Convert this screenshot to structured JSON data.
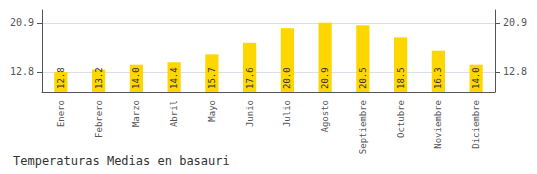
{
  "chart_data": {
    "type": "bar",
    "title": "Temperaturas Medias en basauri",
    "categories": [
      "Enero",
      "Febrero",
      "Marzo",
      "Abril",
      "Mayo",
      "Junio",
      "Julio",
      "Agosto",
      "Septiembre",
      "Octubre",
      "Noviembre",
      "Diciembre"
    ],
    "values": [
      12.8,
      13.2,
      14.0,
      14.4,
      15.7,
      17.6,
      20.0,
      20.9,
      20.5,
      18.5,
      16.3,
      14.0
    ],
    "value_labels": [
      "12.8",
      "13.2",
      "14.0",
      "14.4",
      "15.7",
      "17.6",
      "20.0",
      "20.9",
      "20.5",
      "18.5",
      "16.3",
      "14.0"
    ],
    "color": "#FFD700",
    "ylim": [
      9.5,
      23.0
    ],
    "yticks": [
      12.8,
      20.9
    ],
    "grid": true,
    "data_labels": true
  }
}
